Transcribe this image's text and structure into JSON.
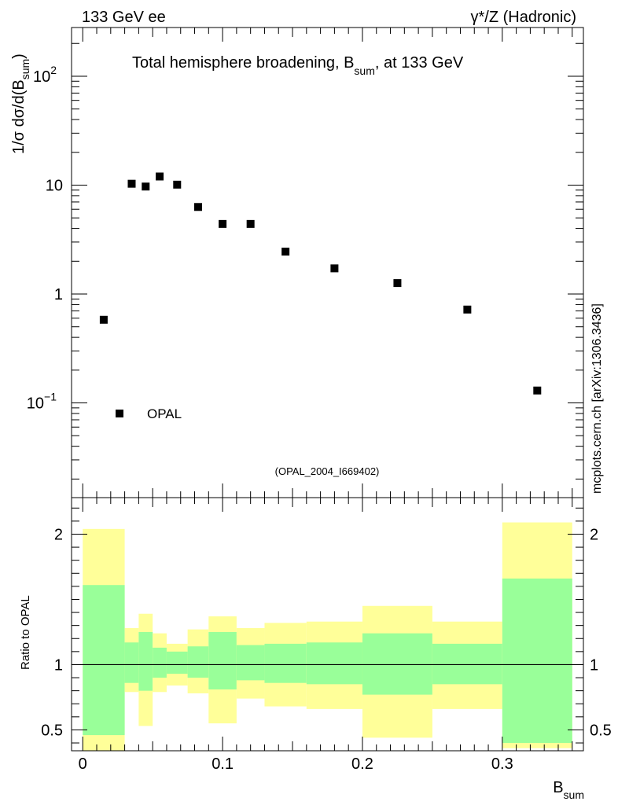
{
  "header": {
    "left_label": "133 GeV ee",
    "right_label": "γ*/Z (Hadronic)",
    "side_label": "mcplots.cern.ch [arXiv:1306.3436]"
  },
  "colors": {
    "background": "#ffffff",
    "axis": "#000000",
    "marker": "#000000",
    "band_inner": "#99ff99",
    "band_outer": "#ffff99",
    "analysis_text": "#999999"
  },
  "chart_data": [
    {
      "type": "scatter",
      "title": "Total hemisphere broadening, B_sum, at 133 GeV",
      "title_main": "Total hemisphere broadening, B",
      "title_sub": "sum",
      "title_tail": ", at 133 GeV",
      "ylabel_prefix": "1/σ  dσ/d(B",
      "ylabel_sub": "sum",
      "ylabel_suffix": ")",
      "yscale": "log",
      "ylim": [
        0.0135,
        280
      ],
      "xlim": [
        -0.008,
        0.358
      ],
      "ytick_labels": [
        {
          "value": 100,
          "label": "10",
          "exp": "2"
        },
        {
          "value": 10,
          "label": "10",
          "exp": ""
        },
        {
          "value": 1,
          "label": "1",
          "exp": ""
        },
        {
          "value": 0.1,
          "label": "10",
          "exp": "−1"
        }
      ],
      "legend": {
        "label": "OPAL",
        "placement": "bottom-left"
      },
      "analysis_id": "(OPAL_2004_I669402)",
      "series": [
        {
          "name": "OPAL",
          "x": [
            0.015,
            0.035,
            0.045,
            0.055,
            0.0675,
            0.0825,
            0.1,
            0.12,
            0.145,
            0.18,
            0.225,
            0.275,
            0.325
          ],
          "values": [
            0.58,
            10.3,
            9.7,
            12.0,
            10.1,
            6.3,
            4.4,
            4.4,
            2.45,
            1.72,
            1.26,
            0.72,
            0.13
          ]
        }
      ]
    },
    {
      "type": "area",
      "ylabel": "Ratio to OPAL",
      "yscale": "linear",
      "ylim": [
        0.34,
        2.28
      ],
      "xlim": [
        -0.008,
        0.358
      ],
      "xlabel_main": "B",
      "xlabel_sub": "sum",
      "xtick_labels": [
        "0",
        "0.1",
        "0.2",
        "0.3"
      ],
      "xtick_values": [
        0,
        0.1,
        0.2,
        0.3
      ],
      "ytick_labels": [
        "0.5",
        "1",
        "2"
      ],
      "ytick_values": [
        0.5,
        1,
        2
      ],
      "reference_line": 1,
      "bins": [
        {
          "lo": 0.0,
          "hi": 0.03,
          "inner": [
            0.46,
            1.61
          ],
          "outer": [
            0.3,
            2.04
          ]
        },
        {
          "lo": 0.03,
          "hi": 0.04,
          "inner": [
            0.86,
            1.17
          ],
          "outer": [
            0.79,
            1.28
          ]
        },
        {
          "lo": 0.04,
          "hi": 0.05,
          "inner": [
            0.8,
            1.25
          ],
          "outer": [
            0.53,
            1.39
          ]
        },
        {
          "lo": 0.05,
          "hi": 0.06,
          "inner": [
            0.9,
            1.13
          ],
          "outer": [
            0.79,
            1.24
          ]
        },
        {
          "lo": 0.06,
          "hi": 0.075,
          "inner": [
            0.93,
            1.1
          ],
          "outer": [
            0.84,
            1.16
          ]
        },
        {
          "lo": 0.075,
          "hi": 0.09,
          "inner": [
            0.9,
            1.14
          ],
          "outer": [
            0.78,
            1.27
          ]
        },
        {
          "lo": 0.09,
          "hi": 0.11,
          "inner": [
            0.81,
            1.25
          ],
          "outer": [
            0.55,
            1.37
          ]
        },
        {
          "lo": 0.11,
          "hi": 0.13,
          "inner": [
            0.88,
            1.15
          ],
          "outer": [
            0.74,
            1.28
          ]
        },
        {
          "lo": 0.13,
          "hi": 0.16,
          "inner": [
            0.86,
            1.16
          ],
          "outer": [
            0.68,
            1.32
          ]
        },
        {
          "lo": 0.16,
          "hi": 0.2,
          "inner": [
            0.85,
            1.17
          ],
          "outer": [
            0.66,
            1.33
          ]
        },
        {
          "lo": 0.2,
          "hi": 0.25,
          "inner": [
            0.77,
            1.24
          ],
          "outer": [
            0.44,
            1.45
          ]
        },
        {
          "lo": 0.25,
          "hi": 0.3,
          "inner": [
            0.85,
            1.16
          ],
          "outer": [
            0.66,
            1.33
          ]
        },
        {
          "lo": 0.3,
          "hi": 0.35,
          "inner": [
            0.4,
            1.66
          ],
          "outer": [
            0.36,
            2.09
          ]
        }
      ]
    }
  ]
}
